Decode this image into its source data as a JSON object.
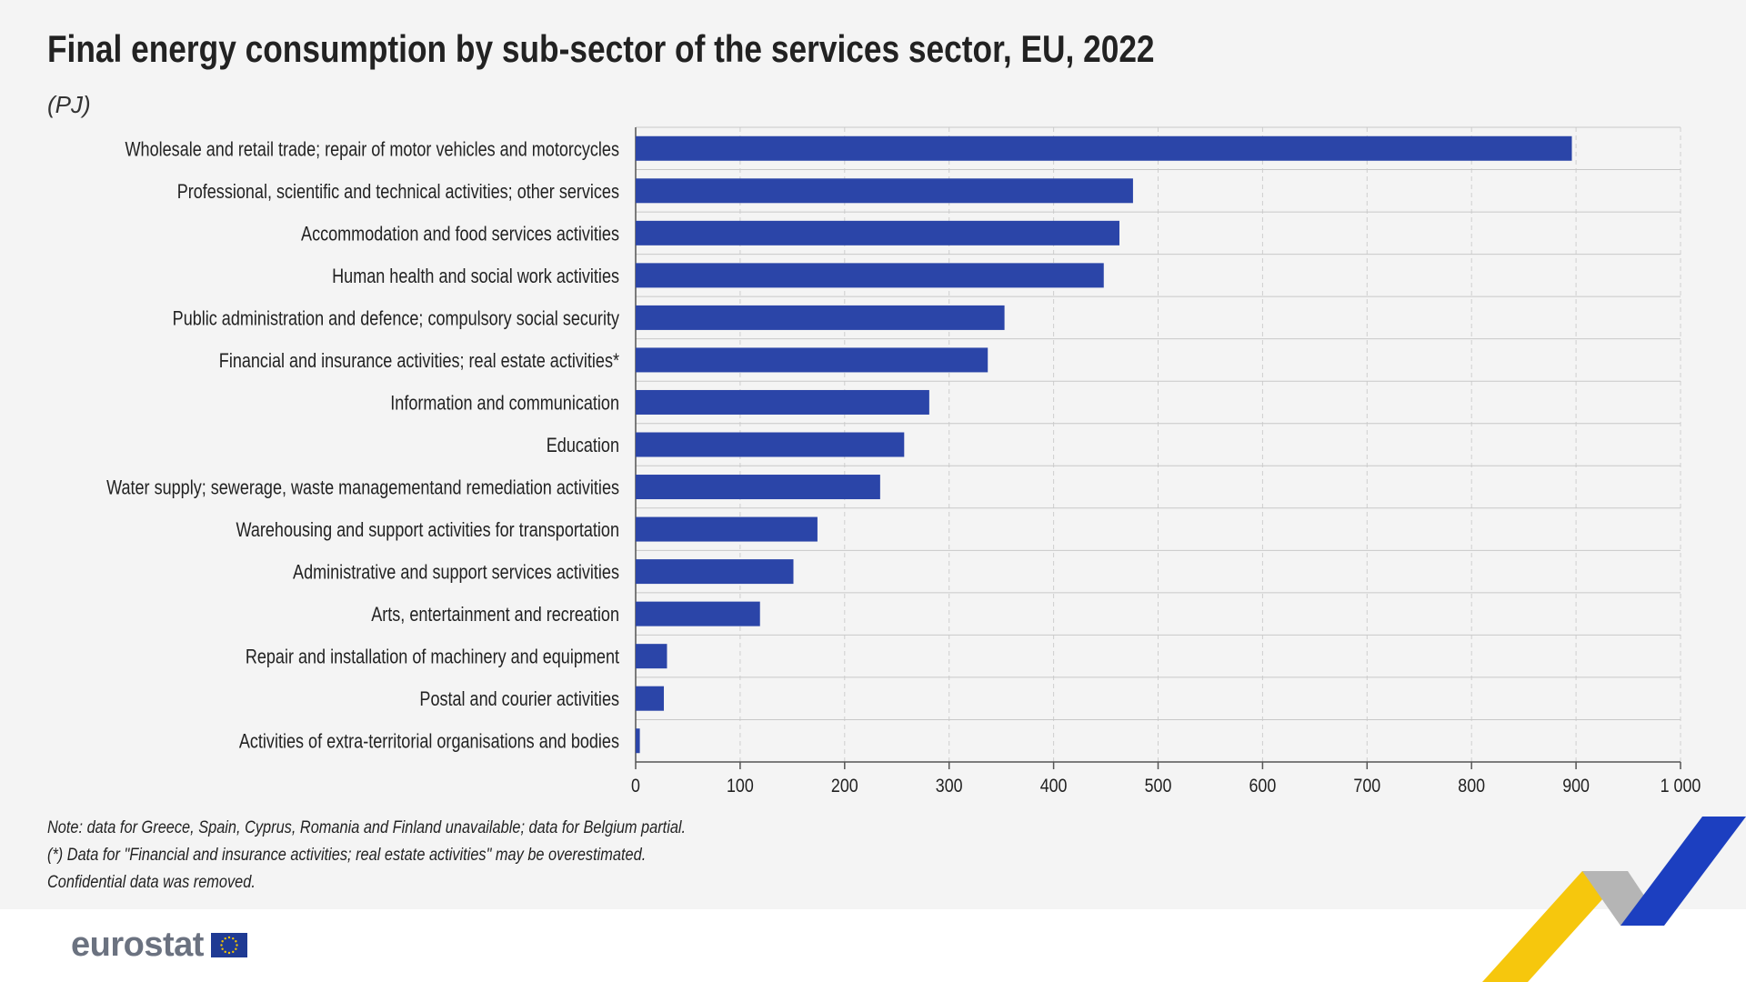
{
  "chart_data": {
    "type": "bar",
    "orientation": "horizontal",
    "title": "Final energy consumption by sub-sector of the services sector, EU, 2022",
    "subtitle": "(PJ)",
    "categories": [
      "Wholesale and retail trade; repair of motor vehicles and motorcycles",
      "Professional, scientific and technical activities; other services",
      "Accommodation and food services activities",
      "Human health and social work activities",
      "Public administration and defence; compulsory social security",
      "Financial and insurance activities; real estate activities*",
      "Information and communication",
      "Education",
      "Water supply; sewerage, waste managementand remediation activities",
      "Warehousing and support activities for transportation",
      "Administrative and support services activities",
      "Arts, entertainment and recreation",
      "Repair and installation of machinery and equipment",
      "Postal and courier activities",
      "Activities of extra-territorial organisations and bodies"
    ],
    "values": [
      896,
      476,
      463,
      448,
      353,
      337,
      281,
      257,
      234,
      174,
      151,
      119,
      30,
      27,
      4
    ],
    "xlim": [
      0,
      1000
    ],
    "xticks": [
      0,
      100,
      200,
      300,
      400,
      500,
      600,
      700,
      800,
      900,
      1000
    ],
    "xtick_labels": [
      "0",
      "100",
      "200",
      "300",
      "400",
      "500",
      "600",
      "700",
      "800",
      "900",
      "1 000"
    ],
    "grid": "vertical dashed",
    "bar_color": "#2b45a8"
  },
  "notes": [
    "Note: data for Greece, Spain, Cyprus, Romania and Finland unavailable; data for Belgium partial.",
    "(*) Data for \"Financial and insurance activities; real estate activities\" may be overestimated.",
    "Confidential data was removed."
  ],
  "logo": {
    "text": "eurostat"
  },
  "colors": {
    "bar": "#2b45a8",
    "deco_blue": "#1c3fc0",
    "deco_yellow": "#f5c400",
    "deco_grey": "#b5b5b5"
  }
}
